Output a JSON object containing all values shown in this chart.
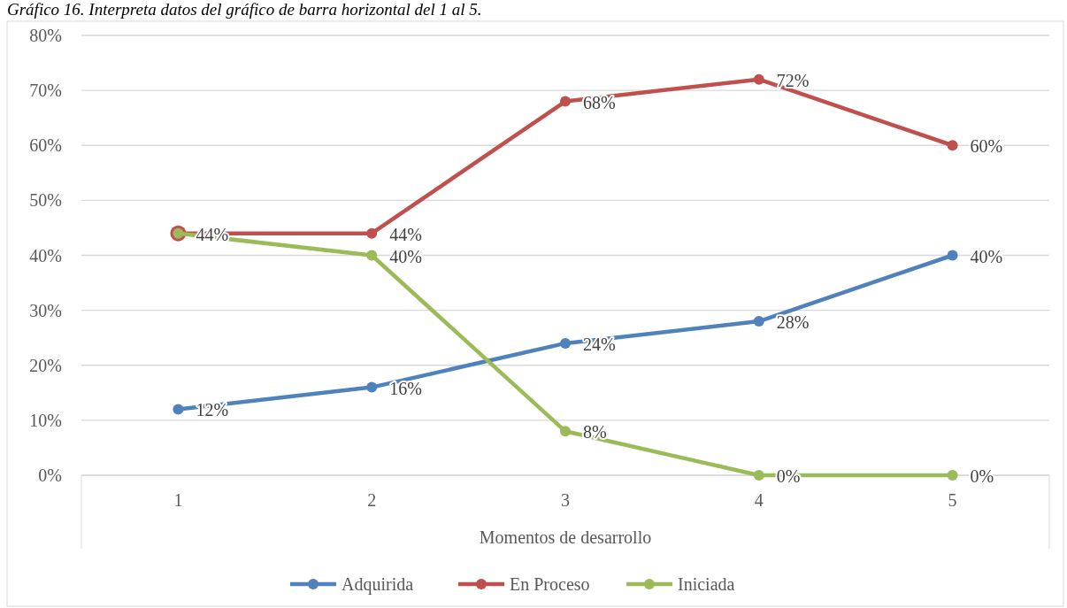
{
  "chart_data": {
    "type": "line",
    "title": "Gráfico 16. Interpreta datos del gráfico de barra horizontal del 1 al 5.",
    "xlabel": "Momentos de desarrollo",
    "categories": [
      "1",
      "2",
      "3",
      "4",
      "5"
    ],
    "series": [
      {
        "name": "Adquirida",
        "color": "#4f81bd",
        "values": [
          12,
          16,
          24,
          28,
          40
        ],
        "value_labels": [
          "12%",
          "16%",
          "24%",
          "28%",
          "40%"
        ]
      },
      {
        "name": "En Proceso",
        "color": "#c0504d",
        "values": [
          44,
          44,
          68,
          72,
          60
        ],
        "value_labels": [
          null,
          "44%",
          "68%",
          "72%",
          "60%"
        ]
      },
      {
        "name": "Iniciada",
        "color": "#9bbb59",
        "values": [
          44,
          40,
          8,
          0,
          0
        ],
        "value_labels": [
          "44%",
          "40%",
          "8%",
          "0%",
          "0%"
        ]
      }
    ],
    "ylim": [
      0,
      80
    ],
    "yticks": [
      {
        "value": 0,
        "label": "0%"
      },
      {
        "value": 10,
        "label": "10%"
      },
      {
        "value": 20,
        "label": "20%"
      },
      {
        "value": 30,
        "label": "30%"
      },
      {
        "value": 40,
        "label": "40%"
      },
      {
        "value": 50,
        "label": "50%"
      },
      {
        "value": 60,
        "label": "60%"
      },
      {
        "value": 70,
        "label": "70%"
      },
      {
        "value": 80,
        "label": "80%"
      }
    ],
    "grid": "y",
    "legend": "bottom",
    "marker": "circle",
    "line_style": "solid"
  }
}
